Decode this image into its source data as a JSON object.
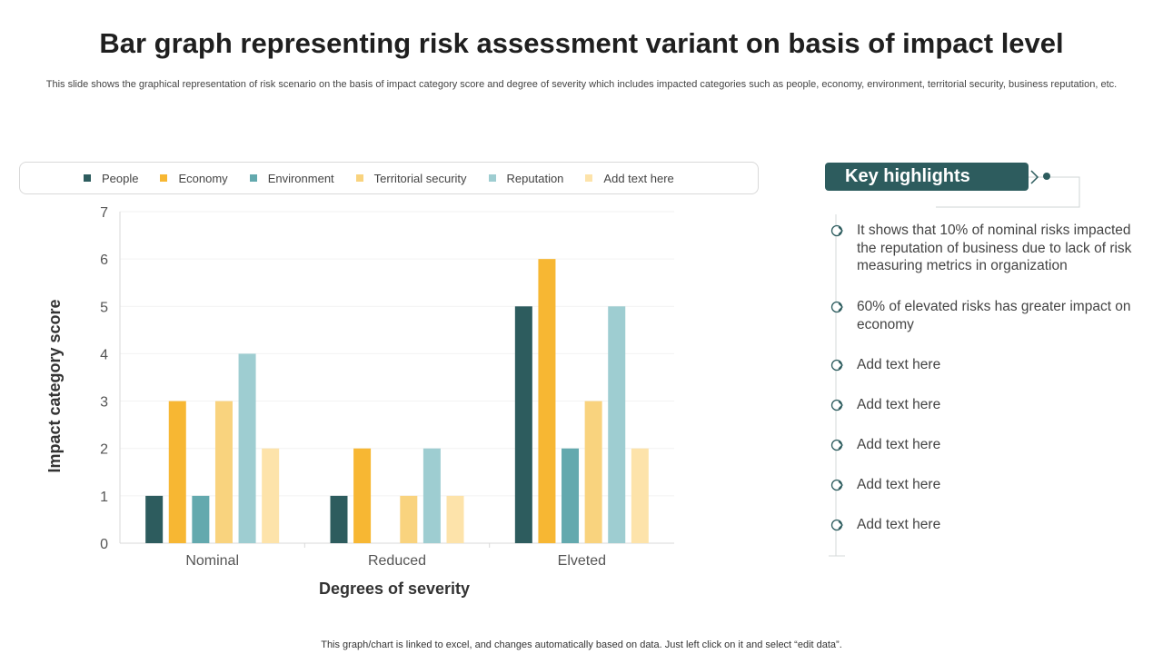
{
  "title": "Bar graph representing risk assessment variant on basis of impact level",
  "subtitle": "This slide shows the graphical representation of risk scenario on the basis of impact category score and degree of severity which includes impacted categories such as people, economy, environment, territorial security, business reputation, etc.",
  "footer": "This graph/chart is linked to excel,  and changes automatically based on data. Just left click on it and select “edit data”.",
  "chart_data": {
    "type": "bar",
    "title": "",
    "xlabel": "Degrees of severity",
    "ylabel": "Impact category score",
    "ylim": [
      0,
      7
    ],
    "yticks": [
      "0",
      "1",
      "2",
      "3",
      "4",
      "5",
      "6",
      "7"
    ],
    "categories": [
      "Nominal",
      "Reduced",
      "Elveted"
    ],
    "legend_position": "top",
    "series": [
      {
        "name": "People",
        "color": "#2d5c5e",
        "values": [
          1,
          1,
          5
        ]
      },
      {
        "name": "Economy",
        "color": "#f7b733",
        "values": [
          3,
          2,
          6
        ]
      },
      {
        "name": "Environment",
        "color": "#63a9ae",
        "values": [
          1,
          0,
          2
        ]
      },
      {
        "name": "Territorial  security",
        "color": "#f9d37e",
        "values": [
          3,
          1,
          3
        ]
      },
      {
        "name": "Reputation",
        "color": "#9ecdd1",
        "values": [
          4,
          2,
          5
        ]
      },
      {
        "name": "Add text here",
        "color": "#fde3aa",
        "values": [
          2,
          1,
          2
        ]
      }
    ]
  },
  "highlights": {
    "header": "Key highlights",
    "accent_color": "#2d5c5e",
    "items": [
      {
        "text": "It shows that 10% of nominal risks impacted the reputation of business due to lack of risk measuring metrics in organization"
      },
      {
        "text": "60% of elevated risks has greater impact on economy"
      },
      {
        "text": "Add text here"
      },
      {
        "text": "Add text here"
      },
      {
        "text": "Add text here"
      },
      {
        "text": "Add text here"
      },
      {
        "text": "Add text here"
      }
    ]
  }
}
